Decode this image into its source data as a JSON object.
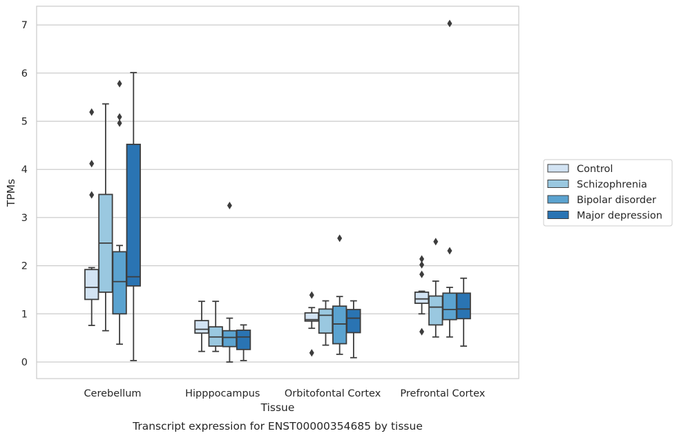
{
  "chart_data": {
    "type": "boxplot",
    "caption": "Transcript expression for ENST00000354685 by tissue",
    "xlabel": "Tissue",
    "ylabel": "TPMs",
    "ylim": [
      -0.33,
      7.4
    ],
    "yticks": [
      "0",
      "1",
      "2",
      "3",
      "4",
      "5",
      "6",
      "7"
    ],
    "ytick_values": [
      0,
      1,
      2,
      3,
      4,
      5,
      6,
      7
    ],
    "grid": true,
    "legend_position": "right",
    "categories": [
      "Cerebellum",
      "Hipppocampus",
      "Orbitofontal Cortex",
      "Prefrontal Cortex"
    ],
    "series": [
      {
        "name": "Control",
        "color": "#d2e3f3",
        "boxes": [
          {
            "q1": 1.3,
            "median": 1.55,
            "q3": 1.92,
            "whisker_low": 0.76,
            "whisker_high": 1.96,
            "outliers": [
              3.47,
              4.12,
              5.19
            ]
          },
          {
            "q1": 0.6,
            "median": 0.68,
            "q3": 0.86,
            "whisker_low": 0.22,
            "whisker_high": 1.26,
            "outliers": []
          },
          {
            "q1": 0.85,
            "median": 0.88,
            "q3": 1.02,
            "whisker_low": 0.7,
            "whisker_high": 1.13,
            "outliers": [
              0.19,
              1.39
            ]
          },
          {
            "q1": 1.22,
            "median": 1.31,
            "q3": 1.45,
            "whisker_low": 1.0,
            "whisker_high": 1.47,
            "outliers": [
              0.63,
              1.82,
              2.02,
              2.14
            ]
          }
        ]
      },
      {
        "name": "Schizophrenia",
        "color": "#9ac8e0",
        "boxes": [
          {
            "q1": 1.45,
            "median": 2.47,
            "q3": 3.48,
            "whisker_low": 0.65,
            "whisker_high": 5.36,
            "outliers": []
          },
          {
            "q1": 0.33,
            "median": 0.52,
            "q3": 0.73,
            "whisker_low": 0.22,
            "whisker_high": 1.26,
            "outliers": []
          },
          {
            "q1": 0.6,
            "median": 0.97,
            "q3": 1.1,
            "whisker_low": 0.35,
            "whisker_high": 1.27,
            "outliers": []
          },
          {
            "q1": 0.77,
            "median": 1.14,
            "q3": 1.37,
            "whisker_low": 0.52,
            "whisker_high": 1.68,
            "outliers": [
              2.5
            ]
          }
        ]
      },
      {
        "name": "Bipolar disorder",
        "color": "#5ba3d0",
        "boxes": [
          {
            "q1": 1.0,
            "median": 1.67,
            "q3": 2.29,
            "whisker_low": 0.37,
            "whisker_high": 2.42,
            "outliers": [
              4.96,
              5.09,
              5.78
            ]
          },
          {
            "q1": 0.32,
            "median": 0.51,
            "q3": 0.65,
            "whisker_low": 0.0,
            "whisker_high": 0.91,
            "outliers": [
              3.25
            ]
          },
          {
            "q1": 0.38,
            "median": 0.79,
            "q3": 1.16,
            "whisker_low": 0.16,
            "whisker_high": 1.36,
            "outliers": [
              2.57
            ]
          },
          {
            "q1": 0.88,
            "median": 1.09,
            "q3": 1.43,
            "whisker_low": 0.52,
            "whisker_high": 1.55,
            "outliers": [
              2.31,
              7.03
            ]
          }
        ]
      },
      {
        "name": "Major depression",
        "color": "#2a74b3",
        "boxes": [
          {
            "q1": 1.58,
            "median": 1.77,
            "q3": 4.52,
            "whisker_low": 0.03,
            "whisker_high": 6.01,
            "outliers": []
          },
          {
            "q1": 0.26,
            "median": 0.52,
            "q3": 0.66,
            "whisker_low": 0.03,
            "whisker_high": 0.77,
            "outliers": []
          },
          {
            "q1": 0.61,
            "median": 0.91,
            "q3": 1.09,
            "whisker_low": 0.09,
            "whisker_high": 1.27,
            "outliers": []
          },
          {
            "q1": 0.9,
            "median": 1.1,
            "q3": 1.43,
            "whisker_low": 0.33,
            "whisker_high": 1.74,
            "outliers": []
          }
        ]
      }
    ]
  }
}
